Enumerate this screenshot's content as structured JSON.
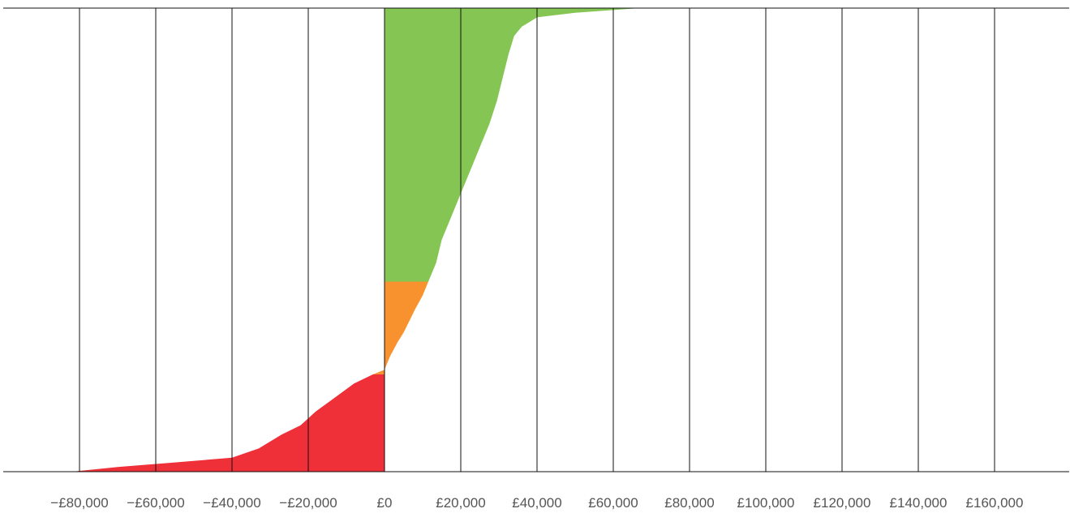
{
  "chart_data": {
    "type": "area",
    "title": "",
    "xlabel": "",
    "ylabel": "",
    "grid": true,
    "legend": "none",
    "xlim": [
      -80000,
      180000
    ],
    "ylim": [
      0,
      1
    ],
    "x_ticks": [
      -80000,
      -60000,
      -40000,
      -20000,
      0,
      20000,
      40000,
      60000,
      80000,
      100000,
      120000,
      140000,
      160000
    ],
    "x_tick_labels": [
      "−£80,000",
      "−£60,000",
      "−£40,000",
      "−£20,000",
      "£0",
      "£20,000",
      "£40,000",
      "£60,000",
      "£80,000",
      "£100,000",
      "£120,000",
      "£140,000",
      "£160,000"
    ],
    "curve": {
      "y": [
        0.0,
        0.01,
        0.02,
        0.03,
        0.05,
        0.08,
        0.1,
        0.13,
        0.16,
        0.19,
        0.21,
        0.22,
        0.25,
        0.28,
        0.3,
        0.35,
        0.38,
        0.41,
        0.45,
        0.5,
        0.55,
        0.6,
        0.65,
        0.7,
        0.75,
        0.8,
        0.85,
        0.9,
        0.94,
        0.96,
        0.97,
        0.98,
        0.99,
        1.0
      ],
      "x": [
        -82000,
        -70000,
        -55000,
        -40000,
        -33000,
        -27000,
        -22000,
        -18000,
        -13000,
        -8000,
        -3000,
        0,
        1500,
        3500,
        5000,
        8000,
        10000,
        11500,
        13500,
        15000,
        17500,
        20000,
        22500,
        25000,
        27500,
        29500,
        31000,
        32500,
        34000,
        36000,
        38000,
        40000,
        50000,
        67000
      ]
    },
    "series": [
      {
        "color": "#ef3038",
        "y_range": [
          0.0,
          0.21
        ]
      },
      {
        "color": "#f7922e",
        "y_range": [
          0.21,
          0.41
        ]
      },
      {
        "color": "#84c553",
        "y_range": [
          0.41,
          1.0
        ]
      }
    ]
  }
}
